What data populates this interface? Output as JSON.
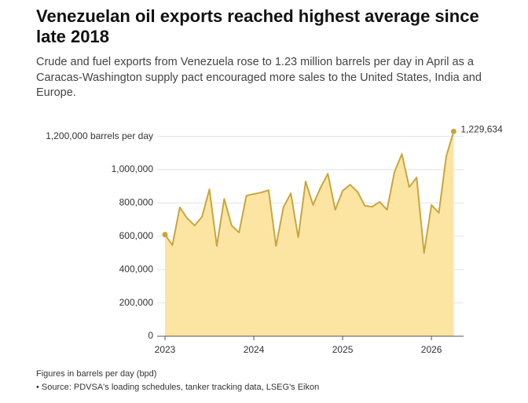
{
  "chart_data": {
    "type": "area",
    "title": "Venezuelan oil exports reached highest average since late 2018",
    "subtitle": "Crude and fuel exports from Venezuela rose to 1.23 million barrels per day in April as a Caracas-Washington supply pact encouraged more sales to the United States, India and Europe.",
    "note": "Figures in barrels per day (bpd)",
    "source": "• Source: PDVSA's loading schedules, tanker tracking data, LSEG's Eikon",
    "categories": [
      "2023",
      null,
      null,
      null,
      null,
      null,
      null,
      null,
      null,
      null,
      null,
      null,
      "2024",
      null,
      null,
      null,
      null,
      null,
      null,
      null,
      null,
      null,
      null,
      null,
      "2025",
      null,
      null,
      null,
      null,
      null,
      null,
      null,
      null,
      null,
      null,
      null,
      "2026",
      null,
      null,
      null
    ],
    "series": [
      {
        "name": "Exports",
        "color": "#c9a63c",
        "fill": "#fce4a3",
        "values": [
          610000,
          547000,
          774000,
          708000,
          665000,
          717000,
          882000,
          542000,
          825000,
          665000,
          623000,
          844000,
          854000,
          863000,
          877000,
          542000,
          774000,
          858000,
          594000,
          929000,
          788000,
          891000,
          976000,
          759000,
          873000,
          910000,
          868000,
          783000,
          778000,
          807000,
          759000,
          986000,
          1094000,
          896000,
          953000,
          500000,
          788000,
          741000,
          1080000,
          1229634
        ],
        "value_labels": [
          null,
          null,
          null,
          null,
          null,
          null,
          null,
          null,
          null,
          null,
          null,
          null,
          null,
          null,
          null,
          null,
          null,
          null,
          null,
          null,
          null,
          null,
          null,
          null,
          null,
          null,
          null,
          null,
          null,
          null,
          null,
          null,
          null,
          null,
          null,
          null,
          null,
          null,
          null,
          "1,229,634"
        ]
      }
    ],
    "ylim": [
      0,
      1250000
    ],
    "yticks": [
      {
        "value": 0,
        "label": "0"
      },
      {
        "value": 200000,
        "label": "200,000"
      },
      {
        "value": 400000,
        "label": "400,000"
      },
      {
        "value": 600000,
        "label": "600,000"
      },
      {
        "value": 800000,
        "label": "800,000"
      },
      {
        "value": 1000000,
        "label": "1,000,000"
      },
      {
        "value": 1200000,
        "label": "1,200,000 barrels per day"
      }
    ],
    "grid": true
  }
}
